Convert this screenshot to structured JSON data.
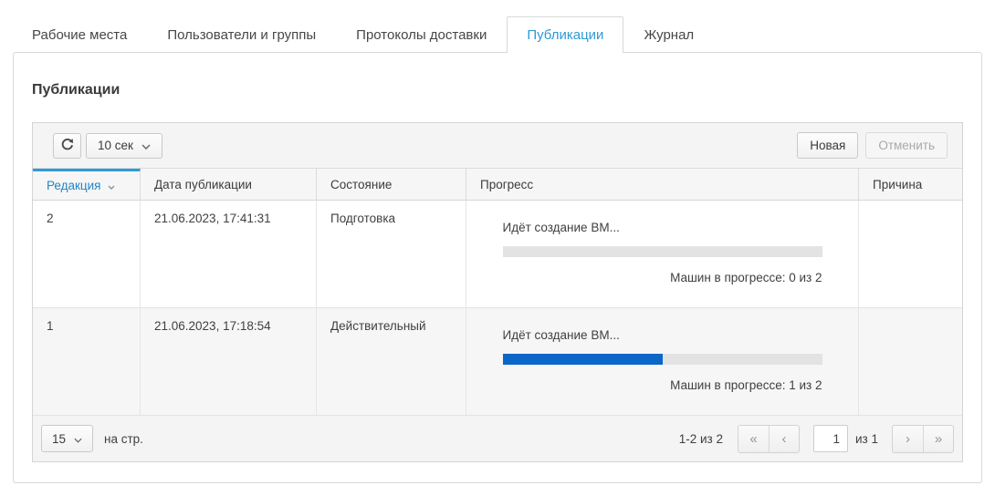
{
  "colors": {
    "accent": "#2f9ad4",
    "sort_blue": "#1f86c8",
    "progress_fill": "#0a66c7"
  },
  "tabs": [
    {
      "label": "Рабочие места",
      "active": false
    },
    {
      "label": "Пользователи и группы",
      "active": false
    },
    {
      "label": "Протоколы доставки",
      "active": false
    },
    {
      "label": "Публикации",
      "active": true
    },
    {
      "label": "Журнал",
      "active": false
    }
  ],
  "panel": {
    "title": "Публикации"
  },
  "toolbar": {
    "interval_label": "10 сек",
    "new_label": "Новая",
    "cancel_label": "Отменить"
  },
  "table": {
    "columns": [
      {
        "label": "Редакция",
        "sorted": true,
        "sort_dir": "desc"
      },
      {
        "label": "Дата публикации"
      },
      {
        "label": "Состояние"
      },
      {
        "label": "Прогресс"
      },
      {
        "label": "Причина"
      }
    ],
    "rows": [
      {
        "revision": "2",
        "date": "21.06.2023, 17:41:31",
        "state": "Подготовка",
        "progress": {
          "label": "Идёт создание ВМ...",
          "percent": 0,
          "status": "Машин в прогрессе: 0 из 2"
        },
        "reason": ""
      },
      {
        "revision": "1",
        "date": "21.06.2023, 17:18:54",
        "state": "Действительный",
        "progress": {
          "label": "Идёт создание ВМ...",
          "percent": 50,
          "status": "Машин в прогрессе: 1 из 2"
        },
        "reason": ""
      }
    ]
  },
  "pager": {
    "page_size": "15",
    "per_page_label": "на стр.",
    "range_label": "1-2 из 2",
    "page_value": "1",
    "of_label": "из 1",
    "icons": {
      "first": "«",
      "prev": "‹",
      "next": "›",
      "last": "»"
    }
  }
}
